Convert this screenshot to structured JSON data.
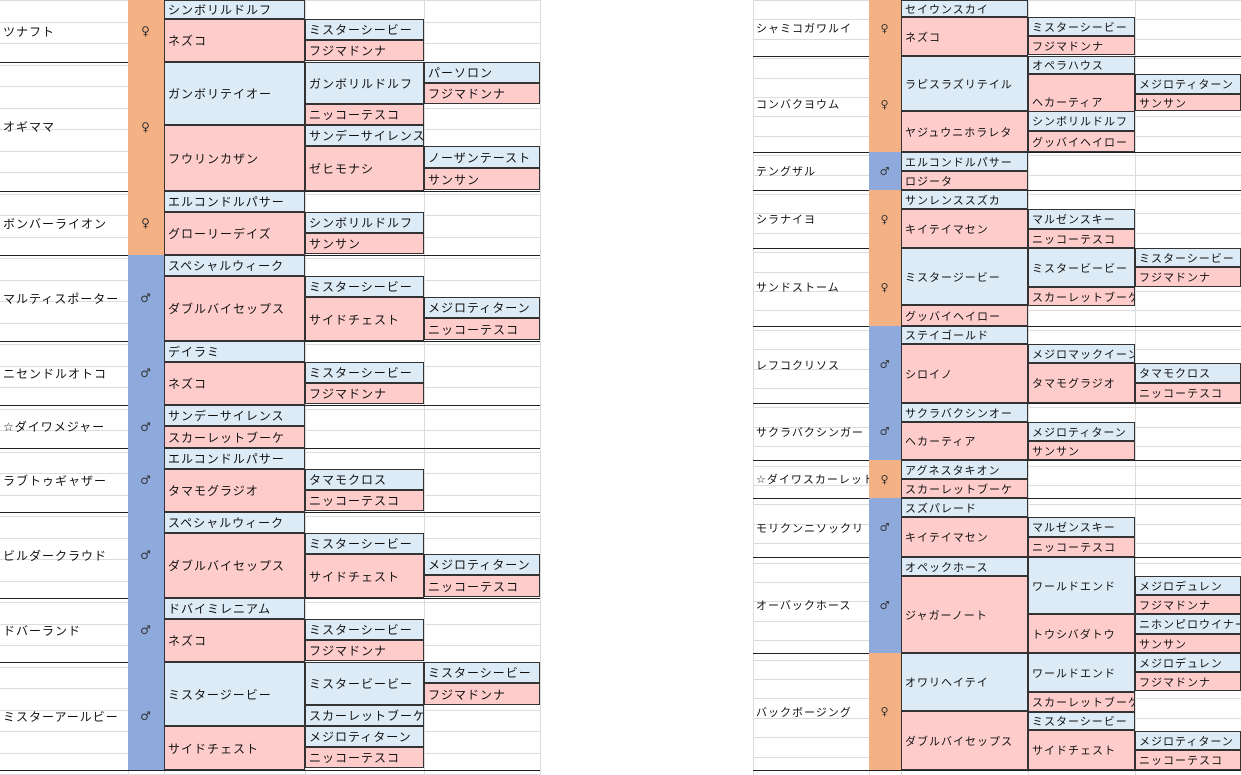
{
  "left": [
    {
      "name": "ツナフト",
      "sex": "♀",
      "r1": [
        "シンボリルドルフ",
        "ネズコ"
      ],
      "r2": [
        "ミスターシービー",
        "フジマドンナ"
      ],
      "r3": []
    },
    {
      "name": "オギママ",
      "sex": "♀",
      "r1": [
        "ガンボリテイオー",
        "フウリンカザン"
      ],
      "r2": [
        "ガンボリルドルフ",
        "ニッコーテスコ",
        "サンデーサイレンス",
        "ゼヒモナシ"
      ],
      "r3": [
        "パーソロン",
        "フジマドンナ",
        "ノーザンテースト",
        "サンサン"
      ]
    },
    {
      "name": "ボンバーライオン",
      "sex": "♀",
      "r1": [
        "エルコンドルパサー",
        "グローリーデイズ"
      ],
      "r2": [
        "シンボリルドルフ",
        "サンサン"
      ],
      "r3": []
    },
    {
      "name": "マルティスポーター",
      "sex": "♂",
      "r1": [
        "スペシャルウィーク",
        "ダブルバイセップス"
      ],
      "r2": [
        "ミスターシービー",
        "サイドチェスト"
      ],
      "r3": [
        "メジロティターン",
        "ニッコーテスコ"
      ]
    },
    {
      "name": "ニセンドルオトコ",
      "sex": "♂",
      "r1": [
        "デイラミ",
        "ネズコ"
      ],
      "r2": [
        "ミスターシービー",
        "フジマドンナ"
      ],
      "r3": []
    },
    {
      "name": "☆ダイワメジャー",
      "sex": "♂",
      "r1": [
        "サンデーサイレンス",
        "スカーレットブーケ"
      ],
      "r2": [],
      "r3": []
    },
    {
      "name": "ラブトゥギャザー",
      "sex": "♂",
      "r1": [
        "エルコンドルパサー",
        "タマモグラジオ"
      ],
      "r2": [
        "タマモクロス",
        "ニッコーテスコ"
      ],
      "r3": []
    },
    {
      "name": "ビルダークラウド",
      "sex": "♂",
      "r1": [
        "スペシャルウィーク",
        "ダブルバイセップス"
      ],
      "r2": [
        "ミスターシービー",
        "サイドチェスト"
      ],
      "r3": [
        "メジロティターン",
        "ニッコーテスコ"
      ]
    },
    {
      "name": "ドバーランド",
      "sex": "♂",
      "r1": [
        "ドバイミレニアム",
        "ネズコ"
      ],
      "r2": [
        "ミスターシービー",
        "フジマドンナ"
      ],
      "r3": []
    },
    {
      "name": "ミスターアールビー",
      "sex": "♂",
      "r1": [
        "ミスタージービー",
        "サイドチェスト"
      ],
      "r2": [
        "ミスタービービー",
        "スカーレットブーケ",
        "メジロティターン",
        "ニッコーテスコ"
      ],
      "r3": [
        "ミスターシービー",
        "フジマドンナ"
      ]
    }
  ],
  "right": [
    {
      "name": "シャミコガワルイ",
      "sex": "♀",
      "r1": [
        "セイウンスカイ",
        "ネズコ"
      ],
      "r2": [
        "ミスターシービー",
        "フジマドンナ"
      ],
      "r3": []
    },
    {
      "name": "コンバクヨウム",
      "sex": "♀",
      "r1": [
        "ラピスラズリテイル",
        "ヤジュウニホラレタ"
      ],
      "r2": [
        "オペラハウス",
        "ヘカーティア",
        "シンボリルドルフ",
        "グッバイヘイロー"
      ],
      "r3": [
        "メジロティターン",
        "サンサン"
      ]
    },
    {
      "name": "テングザル",
      "sex": "♂",
      "r1": [
        "エルコンドルパサー",
        "ロジータ"
      ],
      "r2": [],
      "r3": []
    },
    {
      "name": "シラナイヨ",
      "sex": "♀",
      "r1": [
        "サンレンススズカ",
        "キイテイマセン"
      ],
      "r2": [
        "マルゼンスキー",
        "ニッコーテスコ"
      ],
      "r3": []
    },
    {
      "name": "サンドストーム",
      "sex": "♀",
      "r1": [
        "ミスタージービー",
        "グッバイヘイロー"
      ],
      "r2": [
        "ミスタービービー",
        "スカーレットブーケ"
      ],
      "r3": [
        "ミスターシービー",
        "フジマドンナ"
      ]
    },
    {
      "name": "レフコクリソス",
      "sex": "♂",
      "r1": [
        "ステイゴールド",
        "シロイノ"
      ],
      "r2": [
        "メジロマックイーン",
        "タマモグラジオ"
      ],
      "r3": [
        "タマモクロス",
        "ニッコーテスコ"
      ]
    },
    {
      "name": "サクラバクシンガー",
      "sex": "♂",
      "r1": [
        "サクラバクシンオー",
        "ヘカーティア"
      ],
      "r2": [
        "メジロティターン",
        "サンサン"
      ],
      "r3": []
    },
    {
      "name": "☆ダイワスカーレット",
      "sex": "♀",
      "r1": [
        "アグネスタキオン",
        "スカーレットブーケ"
      ],
      "r2": [],
      "r3": []
    },
    {
      "name": "モリクンニソックリ",
      "sex": "♂",
      "r1": [
        "スズパレード",
        "キイテイマセン"
      ],
      "r2": [
        "マルゼンスキー",
        "ニッコーテスコ"
      ],
      "r3": []
    },
    {
      "name": "オーバックホース",
      "sex": "♂",
      "r1": [
        "オペックホース",
        "ジャガーノート"
      ],
      "r2": [
        "ワールドエンド",
        "トウシバダトウ"
      ],
      "r3": [
        "メジロデュレン",
        "フジマドンナ",
        "ニホンピロウイナー",
        "サンサン"
      ]
    },
    {
      "name": "バックボージング",
      "sex": "♀",
      "r1": [
        "オワリヘイテイ",
        "ダブルバイセップス"
      ],
      "r2": [
        "ワールドエンド",
        "スカーレットブーケ",
        "ミスターシービー",
        "サイドチェスト"
      ],
      "r3": [
        "メジロデュレン",
        "フジマドンナ",
        "メジロティターン",
        "ニッコーテスコ"
      ]
    }
  ]
}
